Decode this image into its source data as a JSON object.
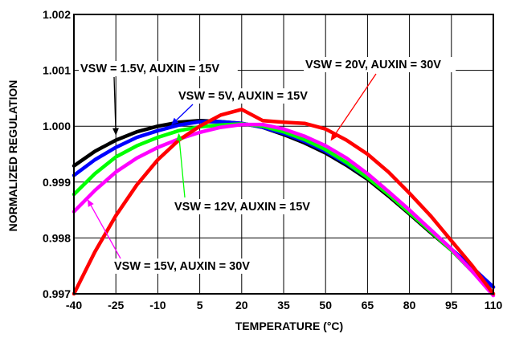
{
  "chart_data": {
    "type": "line",
    "xlabel": "TEMPERATURE (°C)",
    "ylabel": "NORMALIZED REGULATION",
    "xlim": [
      -40,
      110
    ],
    "ylim": [
      0.997,
      1.002
    ],
    "x_ticks": [
      "-40",
      "-25",
      "-10",
      "5",
      "20",
      "35",
      "50",
      "65",
      "80",
      "95",
      "110"
    ],
    "y_ticks": [
      "0.997",
      "0.998",
      "0.999",
      "1.000",
      "1.001",
      "1.002"
    ],
    "grid": true,
    "legend": "none",
    "x": [
      -40,
      -32.5,
      -25,
      -17.5,
      -10,
      -2.5,
      5,
      12.5,
      20,
      27.5,
      35,
      42.5,
      50,
      57.5,
      65,
      72.5,
      80,
      87.5,
      95,
      102.5,
      110
    ],
    "series": [
      {
        "name": "VSW = 1.5V, AUXIN = 15V",
        "color": "#000000",
        "values": [
          0.99929,
          0.99955,
          0.99975,
          0.9999,
          1.0,
          1.00007,
          1.0001,
          1.00008,
          1.00005,
          0.99998,
          0.99985,
          0.9997,
          0.99952,
          0.9993,
          0.99905,
          0.99875,
          0.99843,
          0.9981,
          0.99778,
          0.99745,
          0.99712
        ]
      },
      {
        "name": "VSW = 5V, AUXIN = 15V",
        "color": "#0000ff",
        "values": [
          0.99912,
          0.9994,
          0.99962,
          0.9998,
          0.99992,
          1.00002,
          1.00008,
          1.00008,
          1.00005,
          0.99998,
          0.99987,
          0.99973,
          0.99955,
          0.99933,
          0.99908,
          0.9988,
          0.99848,
          0.99815,
          0.9978,
          0.99747,
          0.99712
        ]
      },
      {
        "name": "VSW = 12V, AUXIN = 15V",
        "color": "#00ff00",
        "values": [
          0.99878,
          0.99915,
          0.99945,
          0.99965,
          0.9998,
          0.99992,
          0.99999,
          1.00002,
          1.00004,
          1.0,
          0.9999,
          0.99976,
          0.99958,
          0.99935,
          0.99908,
          0.99878,
          0.99845,
          0.99812,
          0.99778,
          0.9974,
          0.997
        ]
      },
      {
        "name": "VSW = 15V, AUXIN = 30V",
        "color": "#ff00ff",
        "values": [
          0.99847,
          0.99885,
          0.99918,
          0.99943,
          0.99962,
          0.99977,
          0.99989,
          0.99998,
          1.00003,
          1.00003,
          0.99995,
          0.99982,
          0.99965,
          0.99943,
          0.99915,
          0.99883,
          0.9985,
          0.99815,
          0.9978,
          0.9974,
          0.99697
        ]
      },
      {
        "name": "VSW = 20V, AUXIN = 30V",
        "color": "#ff0000",
        "values": [
          0.997,
          0.99775,
          0.9984,
          0.99895,
          0.9994,
          0.99975,
          1.0,
          1.0002,
          1.0003,
          1.0001,
          1.00007,
          1.00005,
          0.99995,
          0.99975,
          0.9995,
          0.99918,
          0.9988,
          0.9984,
          0.99795,
          0.9975,
          0.997
        ]
      }
    ],
    "annotations": [
      {
        "text": "VSW = 1.5V, AUXIN = 15V",
        "arrow_x": -25,
        "arrow_y": 0.99985,
        "color": "#000000"
      },
      {
        "text": "VSW = 5V, AUXIN = 15V",
        "arrow_x": -5,
        "arrow_y": 1.00003,
        "color": "#0000ff"
      },
      {
        "text": "VSW = 12V, AUXIN = 15V",
        "arrow_x": -2.5,
        "arrow_y": 0.99986,
        "color": "#00ff00"
      },
      {
        "text": "VSW = 15V, AUXIN = 30V",
        "arrow_x": -35,
        "arrow_y": 0.99868,
        "color": "#ff00ff"
      },
      {
        "text": "VSW = 20V, AUXIN = 30V",
        "arrow_x": 52,
        "arrow_y": 0.99975,
        "color": "#ff0000"
      }
    ]
  }
}
